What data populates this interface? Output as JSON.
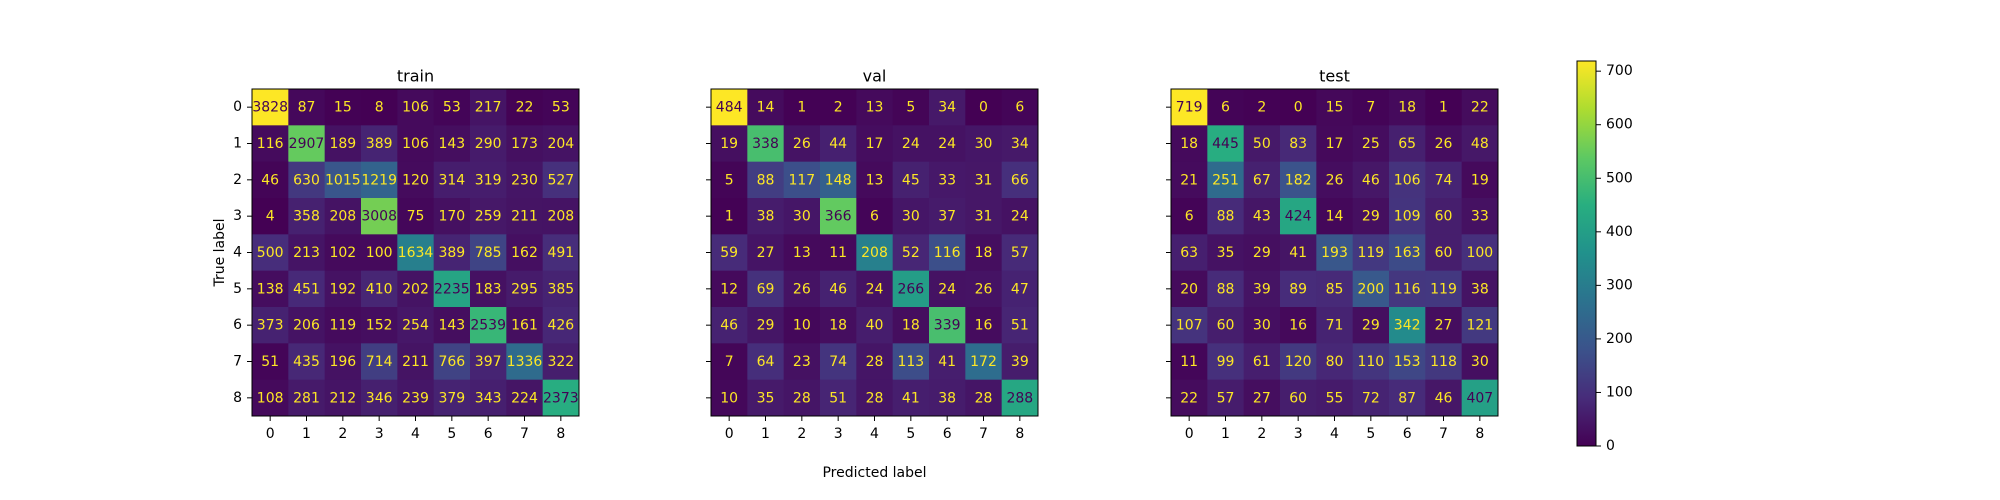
{
  "chart_data": [
    {
      "type": "heatmap",
      "title": "train",
      "xlabel": "",
      "ylabel": "True label",
      "x_categories": [
        "0",
        "1",
        "2",
        "3",
        "4",
        "5",
        "6",
        "7",
        "8"
      ],
      "y_categories": [
        "0",
        "1",
        "2",
        "3",
        "4",
        "5",
        "6",
        "7",
        "8"
      ],
      "matrix": [
        [
          3828,
          87,
          15,
          8,
          106,
          53,
          217,
          22,
          53
        ],
        [
          116,
          2907,
          189,
          389,
          106,
          143,
          290,
          173,
          204
        ],
        [
          46,
          630,
          1015,
          1219,
          120,
          314,
          319,
          230,
          527
        ],
        [
          4,
          358,
          208,
          3008,
          75,
          170,
          259,
          211,
          208
        ],
        [
          500,
          213,
          102,
          100,
          1634,
          389,
          785,
          162,
          491
        ],
        [
          138,
          451,
          192,
          410,
          202,
          2235,
          183,
          295,
          385
        ],
        [
          373,
          206,
          119,
          152,
          254,
          143,
          2539,
          161,
          426
        ],
        [
          51,
          435,
          196,
          714,
          211,
          766,
          397,
          1336,
          322
        ],
        [
          108,
          281,
          212,
          346,
          239,
          379,
          343,
          224,
          2373
        ]
      ]
    },
    {
      "type": "heatmap",
      "title": "val",
      "xlabel": "Predicted label",
      "ylabel": "",
      "x_categories": [
        "0",
        "1",
        "2",
        "3",
        "4",
        "5",
        "6",
        "7",
        "8"
      ],
      "y_categories": [
        "0",
        "1",
        "2",
        "3",
        "4",
        "5",
        "6",
        "7",
        "8"
      ],
      "matrix": [
        [
          484,
          14,
          1,
          2,
          13,
          5,
          34,
          0,
          6
        ],
        [
          19,
          338,
          26,
          44,
          17,
          24,
          24,
          30,
          34
        ],
        [
          5,
          88,
          117,
          148,
          13,
          45,
          33,
          31,
          66
        ],
        [
          1,
          38,
          30,
          366,
          6,
          30,
          37,
          31,
          24
        ],
        [
          59,
          27,
          13,
          11,
          208,
          52,
          116,
          18,
          57
        ],
        [
          12,
          69,
          26,
          46,
          24,
          266,
          24,
          26,
          47
        ],
        [
          46,
          29,
          10,
          18,
          40,
          18,
          339,
          16,
          51
        ],
        [
          7,
          64,
          23,
          74,
          28,
          113,
          41,
          172,
          39
        ],
        [
          10,
          35,
          28,
          51,
          28,
          41,
          38,
          28,
          288
        ]
      ]
    },
    {
      "type": "heatmap",
      "title": "test",
      "xlabel": "",
      "ylabel": "",
      "x_categories": [
        "0",
        "1",
        "2",
        "3",
        "4",
        "5",
        "6",
        "7",
        "8"
      ],
      "y_categories": [
        "0",
        "1",
        "2",
        "3",
        "4",
        "5",
        "6",
        "7",
        "8"
      ],
      "matrix": [
        [
          719,
          6,
          2,
          0,
          15,
          7,
          18,
          1,
          22
        ],
        [
          18,
          445,
          50,
          83,
          17,
          25,
          65,
          26,
          48
        ],
        [
          21,
          251,
          67,
          182,
          26,
          46,
          106,
          74,
          19
        ],
        [
          6,
          88,
          43,
          424,
          14,
          29,
          109,
          60,
          33
        ],
        [
          63,
          35,
          29,
          41,
          193,
          119,
          163,
          60,
          100
        ],
        [
          20,
          88,
          39,
          89,
          85,
          200,
          116,
          119,
          38
        ],
        [
          107,
          60,
          30,
          16,
          71,
          29,
          342,
          27,
          121
        ],
        [
          11,
          99,
          61,
          120,
          80,
          110,
          153,
          118,
          30
        ],
        [
          22,
          57,
          27,
          60,
          55,
          72,
          87,
          46,
          407
        ]
      ]
    }
  ],
  "colorbar": {
    "colormap": "viridis",
    "range": [
      0,
      719
    ],
    "ticks": [
      0,
      100,
      200,
      300,
      400,
      500,
      600,
      700
    ],
    "tick_labels": [
      "0",
      "100",
      "200",
      "300",
      "400",
      "500",
      "600",
      "700"
    ]
  },
  "colors": {
    "text_light": "#fde725",
    "text_dark": "#440154"
  }
}
